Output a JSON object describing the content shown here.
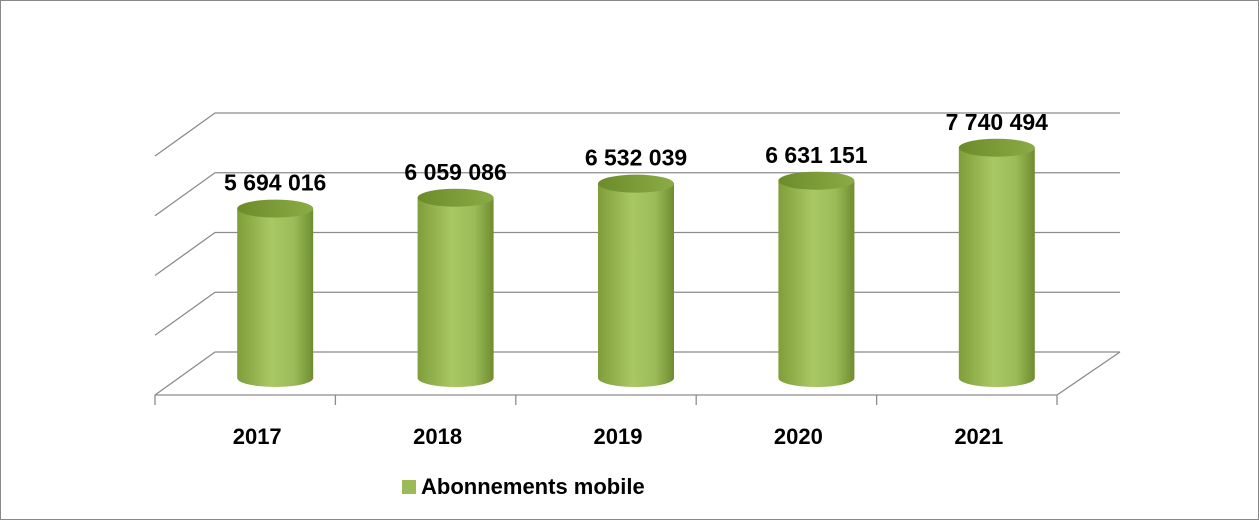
{
  "chart_data": {
    "type": "bar3d",
    "categories": [
      "2017",
      "2018",
      "2019",
      "2020",
      "2021"
    ],
    "series": [
      {
        "name": "Abonnements mobile",
        "color": "#9bbb59",
        "values": [
          5694016,
          6059086,
          6532039,
          6631151,
          7740494
        ],
        "value_labels": [
          "5 694 016",
          "6 059 086",
          "6 532 039",
          "6 631 151",
          "7 740 494"
        ]
      }
    ],
    "ylim": [
      0,
      8000000
    ],
    "yticks": [
      0,
      2000000,
      4000000,
      6000000,
      8000000
    ],
    "grid": true,
    "legend": "bottom"
  }
}
